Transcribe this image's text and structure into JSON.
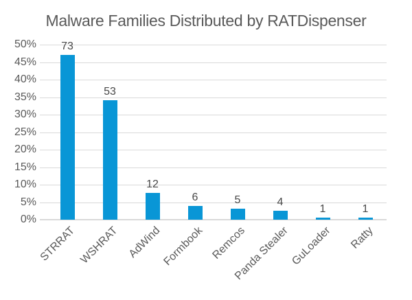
{
  "chart_data": {
    "type": "bar",
    "title": "Malware Families Distributed by RATDispenser",
    "categories": [
      "STRRAT",
      "WSHRAT",
      "AdWind",
      "Formbook",
      "Remcos",
      "Panda Stealer",
      "GuLoader",
      "Ratty"
    ],
    "values": [
      73,
      53,
      12,
      6,
      5,
      4,
      1,
      1
    ],
    "data_labels": [
      "73",
      "53",
      "12",
      "6",
      "5",
      "4",
      "1",
      "1"
    ],
    "percent_of_total": [
      47.1,
      34.2,
      7.7,
      3.9,
      3.2,
      2.6,
      0.6,
      0.6
    ],
    "xlabel": "",
    "ylabel": "",
    "y_ticks": [
      "50%",
      "45%",
      "40%",
      "35%",
      "30%",
      "25%",
      "20%",
      "15%",
      "10%",
      "5%",
      "0%"
    ],
    "ylim_percent": [
      0,
      50
    ],
    "grid": true,
    "legend": "none",
    "colors": {
      "bar": "#0996d6",
      "title_text": "#595959",
      "axis_text": "#595959",
      "value_label_text": "#474747",
      "gridline": "#d9d9d9"
    }
  }
}
